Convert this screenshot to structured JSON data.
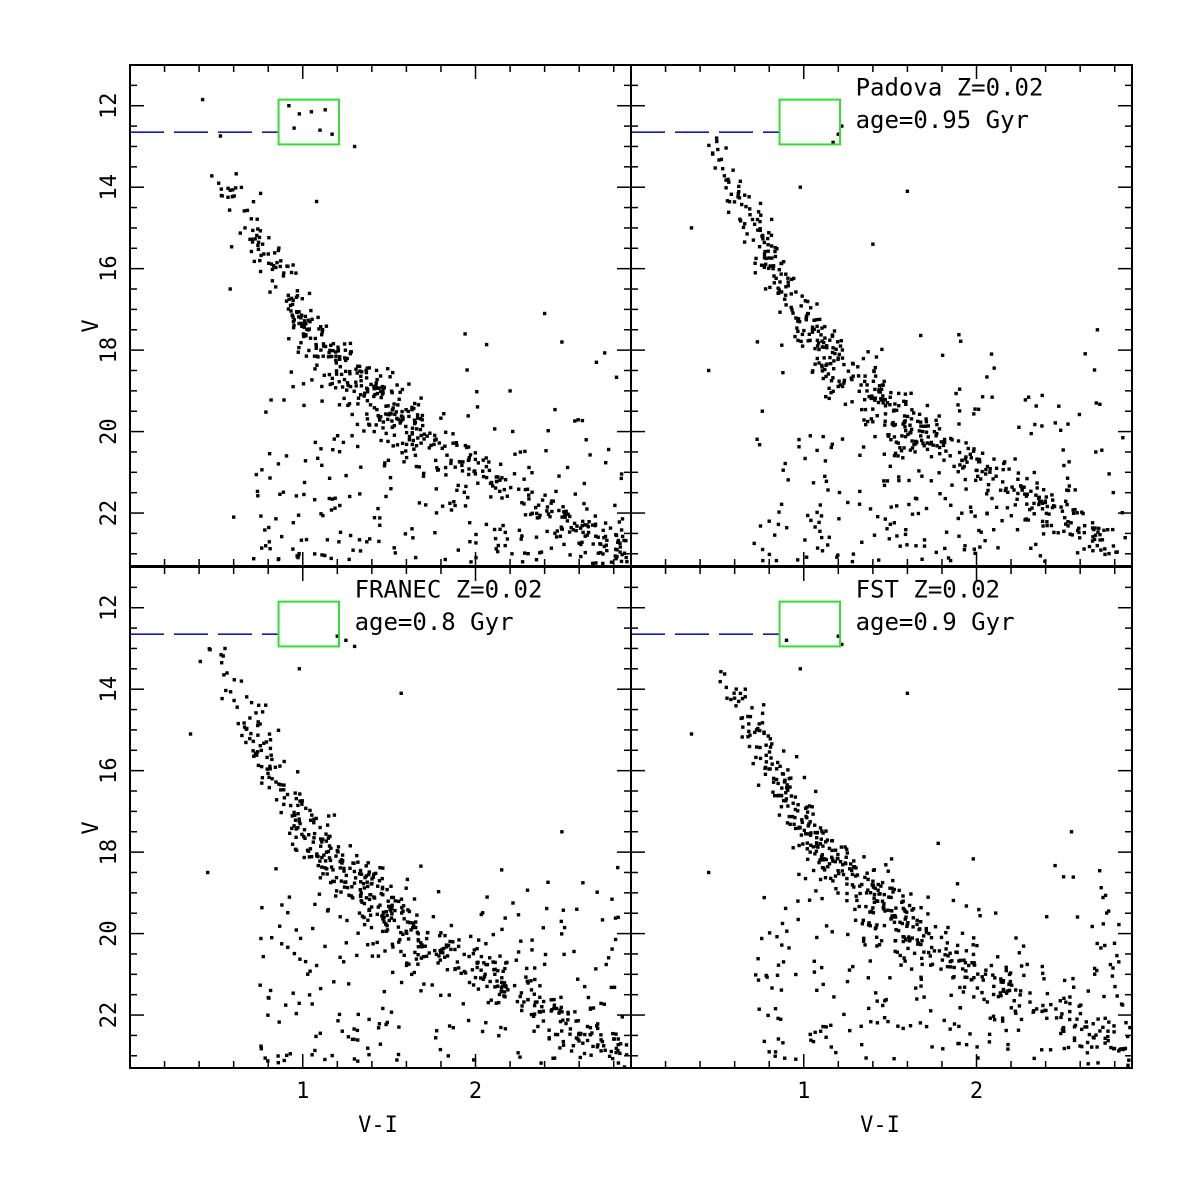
{
  "chart_data": {
    "type": "scatter",
    "layout": "2x2 panels, shared axes",
    "xlabel": "V-I",
    "ylabel": "V",
    "xlim": [
      0,
      2.9
    ],
    "ylim": [
      23.3,
      11.0
    ],
    "y_axis_inverted": true,
    "xticks": [
      "1",
      "2"
    ],
    "yticks": [
      "12",
      "14",
      "16",
      "18",
      "20",
      "22"
    ],
    "colors": {
      "points": "#000000",
      "box": "#33dd33",
      "dashed_line": "#1a1aaa",
      "frame": "#000000"
    },
    "box": {
      "x": [
        0.86,
        1.21
      ],
      "y": [
        11.85,
        12.95
      ],
      "color": "green"
    },
    "dashed_reference_line": {
      "V": 12.65,
      "x_range": [
        0,
        0.86
      ],
      "color": "blue"
    },
    "panels": [
      {
        "name": "observed",
        "label_line1": "",
        "label_line2": "",
        "type": "scatter",
        "seed": 11
      },
      {
        "name": "padova",
        "label_line1": "Padova Z=0.02",
        "label_line2": "age=0.95 Gyr",
        "type": "scatter",
        "seed": 23
      },
      {
        "name": "franec",
        "label_line1": "FRANEC Z=0.02",
        "label_line2": "age=0.8 Gyr",
        "type": "scatter",
        "seed": 37
      },
      {
        "name": "fst",
        "label_line1": "FST Z=0.02",
        "label_line2": "age=0.9 Gyr",
        "type": "scatter",
        "seed": 53
      }
    ],
    "main_sequence_ridge": [
      [
        0.5,
        13.0
      ],
      [
        0.55,
        13.8
      ],
      [
        0.65,
        14.5
      ],
      [
        0.75,
        15.3
      ],
      [
        0.85,
        16.3
      ],
      [
        0.95,
        17.0
      ],
      [
        1.1,
        17.8
      ],
      [
        1.3,
        18.5
      ],
      [
        1.5,
        19.2
      ],
      [
        1.7,
        20.0
      ],
      [
        1.9,
        20.6
      ],
      [
        2.1,
        21.1
      ],
      [
        2.3,
        21.6
      ],
      [
        2.5,
        22.1
      ],
      [
        2.7,
        22.6
      ],
      [
        2.85,
        23.0
      ]
    ],
    "field_population": {
      "x_range": [
        0.7,
        2.85
      ],
      "y_range": [
        17.5,
        23.2
      ]
    },
    "extra_points": {
      "observed": [
        [
          0.42,
          11.85
        ],
        [
          0.92,
          12.0
        ],
        [
          0.98,
          12.2
        ],
        [
          1.05,
          12.15
        ],
        [
          1.13,
          12.1
        ],
        [
          0.95,
          12.55
        ],
        [
          1.1,
          12.6
        ],
        [
          1.17,
          12.7
        ],
        [
          1.3,
          13.0
        ],
        [
          1.08,
          14.35
        ],
        [
          0.58,
          16.5
        ],
        [
          0.6,
          22.1
        ],
        [
          2.4,
          17.1
        ],
        [
          2.5,
          17.8
        ],
        [
          2.7,
          18.3
        ],
        [
          2.2,
          19.0
        ]
      ],
      "padova": [
        [
          1.22,
          12.5
        ],
        [
          1.2,
          12.7
        ],
        [
          1.17,
          12.9
        ],
        [
          0.98,
          14.0
        ],
        [
          1.6,
          14.1
        ],
        [
          0.35,
          15.0
        ],
        [
          1.4,
          15.4
        ],
        [
          0.45,
          18.5
        ],
        [
          2.7,
          17.5
        ]
      ],
      "franec": [
        [
          1.2,
          12.7
        ],
        [
          1.25,
          12.8
        ],
        [
          1.3,
          12.95
        ],
        [
          0.55,
          13.0
        ],
        [
          0.98,
          13.5
        ],
        [
          1.57,
          14.1
        ],
        [
          0.35,
          15.1
        ],
        [
          0.45,
          18.5
        ],
        [
          2.5,
          17.5
        ]
      ],
      "fst": [
        [
          1.2,
          12.7
        ],
        [
          1.22,
          12.9
        ],
        [
          0.9,
          12.8
        ],
        [
          0.98,
          13.5
        ],
        [
          1.6,
          14.1
        ],
        [
          0.35,
          15.1
        ],
        [
          0.45,
          18.5
        ],
        [
          2.55,
          17.5
        ]
      ]
    }
  }
}
